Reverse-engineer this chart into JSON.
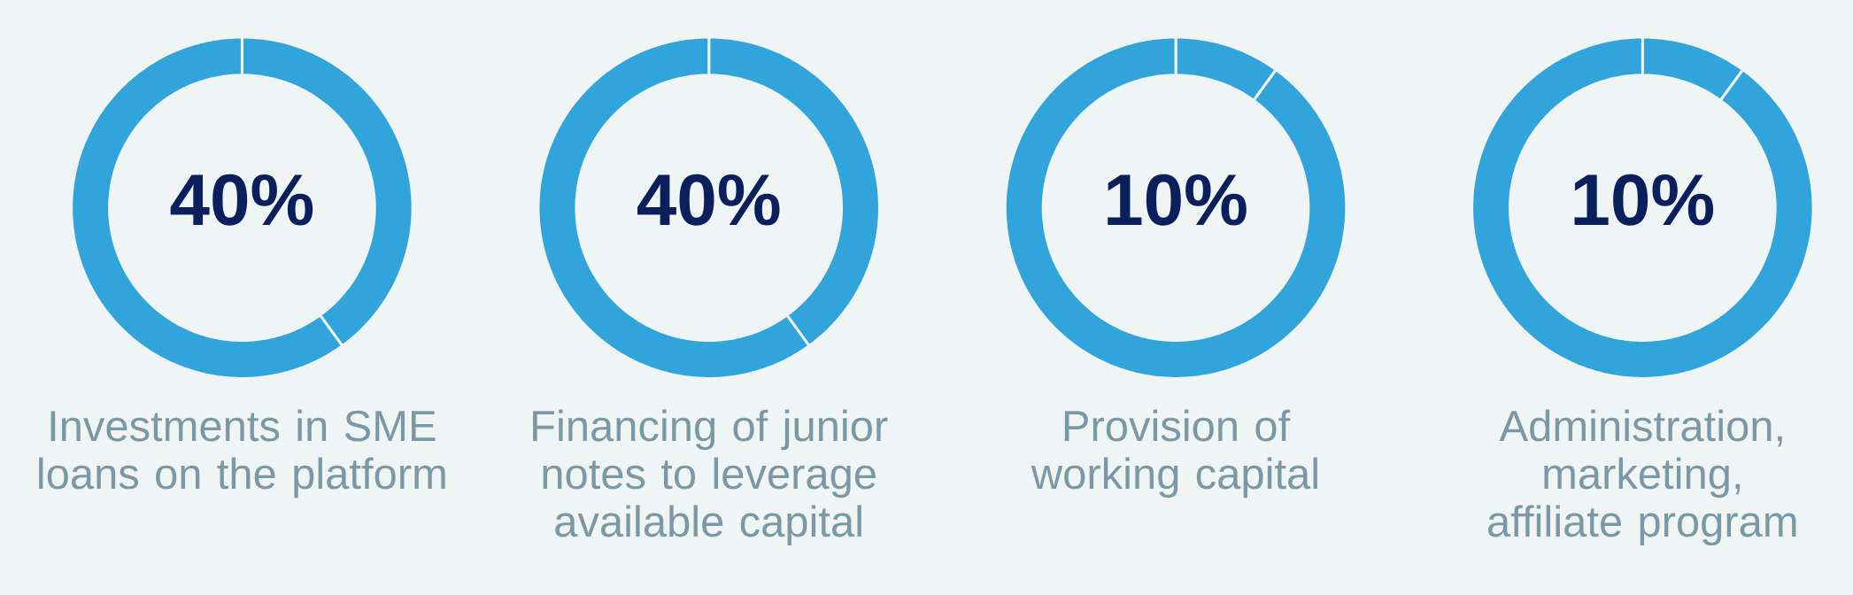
{
  "chart_data": [
    {
      "type": "donut",
      "title": "Investments in SME loans on the platform",
      "categories": [
        null,
        null
      ],
      "values": [
        40,
        60
      ],
      "colors": [
        "#30a4db",
        "#30a4db"
      ],
      "value_labels": [
        "40%",
        null
      ]
    },
    {
      "type": "donut",
      "title": "Financing of junior notes to leverage available capital",
      "categories": [
        null,
        null
      ],
      "values": [
        40,
        60
      ],
      "colors": [
        "#30a4db",
        "#30a4db"
      ],
      "value_labels": [
        "40%",
        null
      ]
    },
    {
      "type": "donut",
      "title": "Provision of working capital",
      "categories": [
        null,
        null
      ],
      "values": [
        10,
        90
      ],
      "colors": [
        "#30a4db",
        "#30a4db"
      ],
      "value_labels": [
        "10%",
        null
      ]
    },
    {
      "type": "donut",
      "title": "Administration, marketing, affiliate program",
      "categories": [
        null,
        null
      ],
      "values": [
        10,
        90
      ],
      "colors": [
        "#30a4db",
        "#30a4db"
      ],
      "value_labels": [
        "10%",
        null
      ]
    }
  ]
}
